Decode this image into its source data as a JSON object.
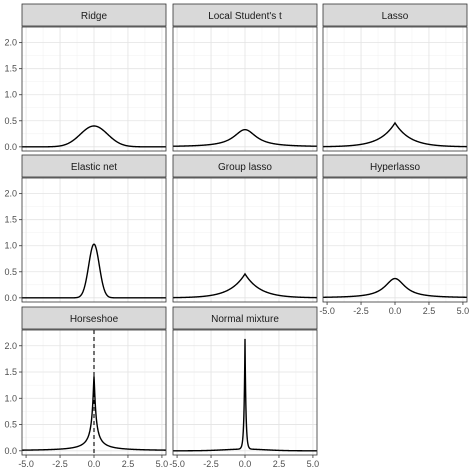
{
  "chart_data": {
    "type": "line",
    "layout": "facet-grid 3x3",
    "xlim": [
      -5.3,
      5.3
    ],
    "ylim": [
      -0.08,
      2.3
    ],
    "x_ticks": [
      "-5.0",
      "-2.5",
      "0.0",
      "2.5",
      "5.0"
    ],
    "x_tick_values": [
      -5.0,
      -2.5,
      0.0,
      2.5,
      5.0
    ],
    "y_ticks": [
      "0.0",
      "0.5",
      "1.0",
      "1.5",
      "2.0"
    ],
    "y_tick_values": [
      0.0,
      0.5,
      1.0,
      1.5,
      2.0
    ],
    "grid": true,
    "strip_fill": "#d9d9d9",
    "line_color": "#000000",
    "panels": [
      {
        "title": "Ridge",
        "family": "gaussian",
        "scale": 1.0,
        "peak": 0.4
      },
      {
        "title": "Local Student's t",
        "family": "student_t",
        "scale": 1.0,
        "nu": 1,
        "peak": 0.33
      },
      {
        "title": "Lasso",
        "family": "laplace",
        "scale": 1.1,
        "peak": 0.46
      },
      {
        "title": "Elastic net",
        "family": "gaussian",
        "scale": 0.39,
        "peak": 1.03
      },
      {
        "title": "Group lasso",
        "family": "laplace",
        "scale": 1.1,
        "peak": 0.46
      },
      {
        "title": "Hyperlasso",
        "family": "student_t",
        "scale": 0.9,
        "nu": 1,
        "peak": 0.37
      },
      {
        "title": "Horseshoe",
        "family": "horseshoe",
        "scale": 0.14,
        "peak": 1.42,
        "vline": 0
      },
      {
        "title": "Normal mixture",
        "family": "spike_slab",
        "scale": 0.07,
        "peak": 2.13
      }
    ]
  }
}
